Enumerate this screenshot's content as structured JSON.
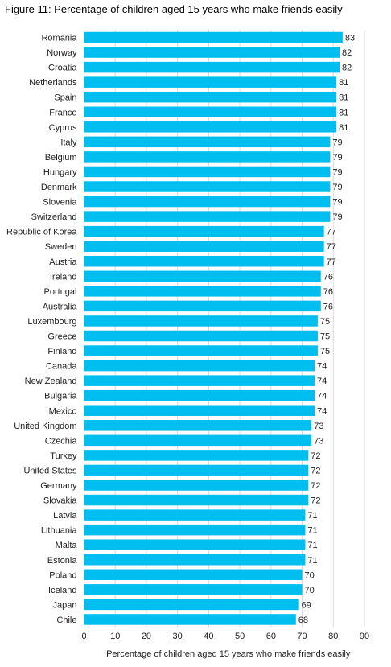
{
  "chart_data": {
    "type": "bar",
    "orientation": "horizontal",
    "title": "Figure 11: Percentage of children aged 15 years who make friends easily",
    "xlabel": "Percentage of children aged 15 years who make friends easily",
    "ylabel": "",
    "xlim": [
      0,
      90
    ],
    "xticks": [
      "0",
      "10",
      "20",
      "30",
      "40",
      "50",
      "60",
      "70",
      "80",
      "90"
    ],
    "grid": true,
    "bar_color": "#00BFF0",
    "categories": [
      "Romania",
      "Norway",
      "Croatia",
      "Netherlands",
      "Spain",
      "France",
      "Cyprus",
      "Italy",
      "Belgium",
      "Hungary",
      "Denmark",
      "Slovenia",
      "Switzerland",
      "Republic of Korea",
      "Sweden",
      "Austria",
      "Ireland",
      "Portugal",
      "Australia",
      "Luxembourg",
      "Greece",
      "Finland",
      "Canada",
      "New Zealand",
      "Bulgaria",
      "Mexico",
      "United Kingdom",
      "Czechia",
      "Turkey",
      "United States",
      "Germany",
      "Slovakia",
      "Latvia",
      "Lithuania",
      "Malta",
      "Estonia",
      "Poland",
      "Iceland",
      "Japan",
      "Chile"
    ],
    "values": [
      83,
      82,
      82,
      81,
      81,
      81,
      81,
      79,
      79,
      79,
      79,
      79,
      79,
      77,
      77,
      77,
      76,
      76,
      76,
      75,
      75,
      75,
      74,
      74,
      74,
      74,
      73,
      73,
      72,
      72,
      72,
      72,
      71,
      71,
      71,
      71,
      70,
      70,
      69,
      68
    ]
  }
}
